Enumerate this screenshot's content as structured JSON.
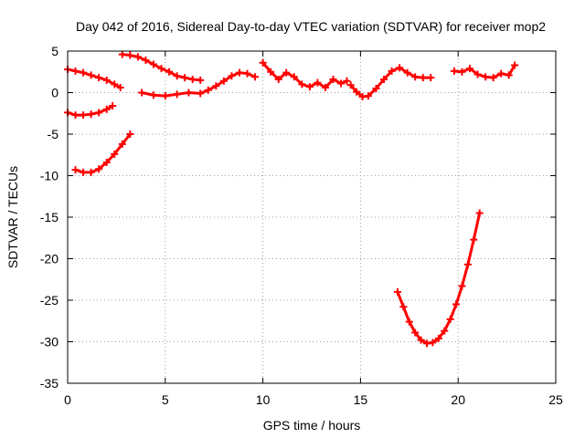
{
  "chart_data": {
    "type": "scatter",
    "title": "Day 042 of 2016, Sidereal Day-to-day VTEC variation (SDTVAR) for receiver mop2",
    "xlabel": "GPS time / hours",
    "ylabel": "SDTVAR / TECUs",
    "xlim": [
      0,
      25
    ],
    "ylim": [
      -35,
      5
    ],
    "xticks": [
      "0",
      "5",
      "10",
      "15",
      "20",
      "25"
    ],
    "yticks": [
      "5",
      "0",
      "-5",
      "-10",
      "-15",
      "-20",
      "-25",
      "-30",
      "-35"
    ],
    "grid": true,
    "marker": "plus",
    "color": "#ff0000",
    "series": [
      {
        "x": [
          0.0,
          0.4,
          0.8,
          1.2,
          1.6,
          2.0,
          2.4,
          2.7
        ],
        "y": [
          2.8,
          2.6,
          2.4,
          2.1,
          1.8,
          1.5,
          1.0,
          0.6
        ]
      },
      {
        "x": [
          0.0,
          0.4,
          0.8,
          1.2,
          1.6,
          2.0,
          2.3
        ],
        "y": [
          -2.4,
          -2.7,
          -2.7,
          -2.6,
          -2.4,
          -2.0,
          -1.6
        ]
      },
      {
        "x": [
          0.4,
          0.8,
          1.2,
          1.6,
          2.0,
          2.4,
          2.8,
          3.2
        ],
        "y": [
          -9.3,
          -9.6,
          -9.6,
          -9.2,
          -8.4,
          -7.4,
          -6.2,
          -5.0
        ]
      },
      {
        "x": [
          2.8,
          3.2,
          3.6,
          4.0,
          4.4,
          4.8,
          5.2,
          5.6,
          6.0,
          6.4,
          6.8
        ],
        "y": [
          4.6,
          4.5,
          4.3,
          3.9,
          3.4,
          2.9,
          2.5,
          2.0,
          1.8,
          1.6,
          1.5
        ]
      },
      {
        "x": [
          3.8,
          4.4,
          5.0,
          5.6,
          6.2,
          6.8,
          7.2,
          7.6,
          8.0,
          8.4,
          8.8,
          9.2,
          9.6
        ],
        "y": [
          0.0,
          -0.3,
          -0.4,
          -0.2,
          0.0,
          -0.1,
          0.3,
          0.8,
          1.4,
          2.0,
          2.4,
          2.3,
          1.9
        ]
      },
      {
        "x": [
          10.0,
          10.4,
          10.8,
          11.2,
          11.6,
          12.0,
          12.4,
          12.8,
          13.2,
          13.6,
          14.0,
          14.3
        ],
        "y": [
          3.6,
          2.5,
          1.6,
          2.4,
          1.9,
          1.0,
          0.7,
          1.2,
          0.6,
          1.6,
          1.1,
          1.4
        ]
      },
      {
        "x": [
          14.5,
          14.8,
          15.1,
          15.4,
          15.8,
          16.2,
          16.6,
          17.0,
          17.4,
          17.8,
          18.2,
          18.6
        ],
        "y": [
          0.9,
          0.1,
          -0.5,
          -0.4,
          0.5,
          1.6,
          2.6,
          3.0,
          2.4,
          1.9,
          1.8,
          1.8
        ]
      },
      {
        "x": [
          19.8,
          20.2,
          20.6,
          21.0,
          21.4,
          21.8,
          22.2,
          22.6,
          22.9
        ],
        "y": [
          2.6,
          2.5,
          2.9,
          2.2,
          1.9,
          1.8,
          2.3,
          2.1,
          3.3
        ]
      },
      {
        "x": [
          16.9,
          17.2,
          17.5,
          17.8,
          18.1,
          18.4,
          18.7,
          19.0,
          19.3,
          19.6,
          19.9,
          20.2,
          20.5,
          20.8,
          21.1
        ],
        "y": [
          -24.0,
          -25.8,
          -27.6,
          -28.9,
          -29.8,
          -30.2,
          -30.1,
          -29.6,
          -28.7,
          -27.3,
          -25.5,
          -23.3,
          -20.7,
          -17.7,
          -14.5
        ]
      }
    ]
  }
}
